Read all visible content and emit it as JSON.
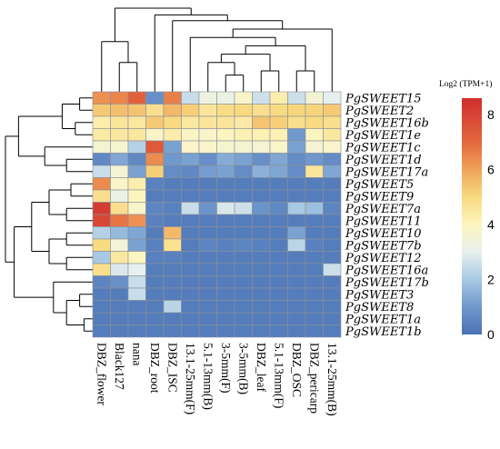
{
  "chart_data": {
    "type": "heatmap",
    "title": "",
    "legend_title": "Log2 (TPM+1)",
    "colorbar": {
      "min": 0,
      "max": 8.6,
      "ticks": [
        0,
        2,
        4,
        6,
        8
      ]
    },
    "colorscale": [
      {
        "v": 0.0,
        "c": "#4a71b5"
      },
      {
        "v": 1.0,
        "c": "#6f98cd"
      },
      {
        "v": 2.0,
        "c": "#a7c9e3"
      },
      {
        "v": 3.0,
        "c": "#e7f0ee"
      },
      {
        "v": 4.0,
        "c": "#fdf5c0"
      },
      {
        "v": 5.0,
        "c": "#f8da80"
      },
      {
        "v": 6.0,
        "c": "#f0a35a"
      },
      {
        "v": 7.0,
        "c": "#e4683e"
      },
      {
        "v": 8.6,
        "c": "#cf2d2e"
      }
    ],
    "columns": [
      "DBZ_flower",
      "Black127",
      "nana",
      "DBZ_root",
      "DBZ_ISC",
      "13.1-25mm(F)",
      "5.1-13mm(B)",
      "3-5mm(F)",
      "3-5mm(B)",
      "DBZ_leaf",
      "5.1-13mm(F)",
      "DBZ_OSC",
      "DBZ_pericarp",
      "13.1-25mm(B)"
    ],
    "rows": [
      "PgSWEET15",
      "PgSWEET2",
      "PgSWEET16b",
      "PgSWEET1e",
      "PgSWEET1c",
      "PgSWEET1d",
      "PgSWEET17a",
      "PgSWEET5",
      "PgSWEET9",
      "PgSWEET7a",
      "PgSWEET11",
      "PgSWEET10",
      "PgSWEET7b",
      "PgSWEET12",
      "PgSWEET16a",
      "PgSWEET17b",
      "PgSWEET3",
      "PgSWEET8",
      "PgSWEET1a",
      "PgSWEET1b"
    ],
    "values": [
      [
        6.3,
        6.5,
        7.2,
        0.8,
        6.6,
        2.5,
        3.3,
        3.2,
        3.8,
        2.6,
        4.3,
        2.6,
        3.6,
        3.0
      ],
      [
        5.3,
        5.5,
        5.4,
        4.8,
        5.6,
        5.2,
        4.6,
        4.9,
        5.0,
        4.8,
        5.0,
        5.1,
        5.1,
        5.3
      ],
      [
        4.3,
        4.6,
        4.5,
        5.3,
        5.0,
        4.5,
        4.6,
        4.6,
        4.4,
        5.4,
        5.2,
        4.8,
        5.0,
        4.8
      ],
      [
        4.4,
        4.5,
        4.5,
        3.8,
        4.3,
        3.9,
        3.8,
        4.0,
        4.2,
        4.2,
        4.2,
        1.0,
        4.0,
        4.5
      ],
      [
        3.6,
        3.7,
        2.2,
        7.4,
        1.2,
        3.8,
        3.8,
        3.7,
        3.6,
        3.6,
        3.8,
        1.2,
        3.6,
        3.8
      ],
      [
        0.6,
        1.3,
        0.6,
        6.4,
        1.0,
        1.2,
        0.8,
        1.4,
        1.2,
        0.8,
        1.3,
        0.7,
        1.0,
        0.7
      ],
      [
        2.5,
        3.6,
        1.2,
        5.2,
        0.7,
        0.6,
        1.1,
        1.2,
        0.7,
        1.5,
        1.3,
        0.7,
        4.6,
        1.3
      ],
      [
        6.4,
        3.8,
        4.3,
        0.4,
        0.3,
        0.3,
        0.3,
        0.3,
        0.3,
        0.3,
        0.3,
        0.3,
        0.3,
        0.3
      ],
      [
        4.8,
        3.2,
        4.0,
        0.3,
        0.3,
        0.3,
        0.3,
        0.3,
        0.3,
        0.3,
        0.3,
        0.3,
        0.3,
        0.3
      ],
      [
        8.2,
        4.8,
        3.8,
        0.5,
        0.4,
        2.5,
        0.9,
        2.8,
        2.6,
        0.9,
        0.6,
        2.0,
        1.8,
        0.5
      ],
      [
        7.9,
        6.8,
        6.3,
        0.4,
        0.3,
        0.3,
        0.3,
        0.3,
        0.3,
        0.3,
        0.3,
        0.3,
        0.3,
        0.3
      ],
      [
        2.2,
        1.7,
        1.3,
        0.3,
        5.6,
        0.3,
        0.3,
        0.3,
        0.3,
        0.3,
        0.3,
        1.2,
        0.3,
        0.3
      ],
      [
        5.0,
        3.5,
        1.2,
        0.4,
        4.7,
        0.3,
        0.5,
        0.4,
        0.5,
        0.4,
        0.3,
        2.3,
        0.4,
        0.3
      ],
      [
        2.0,
        4.5,
        4.0,
        0.4,
        0.4,
        0.3,
        0.3,
        0.3,
        0.3,
        0.3,
        0.3,
        0.3,
        0.3,
        0.3
      ],
      [
        4.8,
        2.8,
        3.0,
        0.3,
        0.3,
        0.3,
        0.3,
        0.3,
        0.3,
        0.3,
        0.3,
        0.3,
        0.3,
        2.6
      ],
      [
        0.5,
        0.8,
        2.5,
        0.3,
        0.3,
        0.3,
        0.3,
        0.3,
        0.3,
        0.3,
        0.3,
        0.3,
        0.3,
        0.3
      ],
      [
        0.3,
        0.3,
        2.5,
        0.3,
        0.3,
        0.3,
        0.3,
        0.3,
        0.3,
        0.3,
        0.3,
        0.3,
        0.3,
        0.3
      ],
      [
        0.3,
        0.3,
        0.3,
        0.3,
        2.3,
        0.3,
        0.3,
        0.3,
        0.3,
        0.3,
        0.3,
        0.3,
        0.3,
        0.3
      ],
      [
        0.3,
        0.3,
        0.3,
        0.3,
        0.3,
        0.3,
        0.3,
        0.3,
        0.3,
        0.3,
        0.3,
        0.3,
        0.3,
        0.3
      ],
      [
        0.3,
        0.3,
        0.3,
        0.3,
        0.3,
        0.3,
        0.3,
        0.3,
        0.3,
        0.3,
        0.3,
        0.3,
        0.3,
        0.3
      ]
    ],
    "row_dendrogram": {
      "leaf_order": [
        0,
        1,
        2,
        3,
        4,
        5,
        6,
        7,
        8,
        9,
        10,
        11,
        12,
        13,
        14,
        15,
        16,
        17,
        18,
        19
      ],
      "merges": [
        [
          0,
          1,
          0.15
        ],
        [
          2,
          3,
          0.2
        ],
        [
          20,
          21,
          0.35
        ],
        [
          5,
          6,
          0.3
        ],
        [
          4,
          23,
          0.55
        ],
        [
          22,
          24,
          0.85
        ],
        [
          7,
          8,
          0.25
        ],
        [
          9,
          10,
          0.3
        ],
        [
          26,
          27,
          0.5
        ],
        [
          11,
          12,
          0.3
        ],
        [
          13,
          14,
          0.3
        ],
        [
          29,
          30,
          0.5
        ],
        [
          28,
          31,
          0.7
        ],
        [
          16,
          17,
          0.15
        ],
        [
          18,
          19,
          0.1
        ],
        [
          33,
          34,
          0.3
        ],
        [
          15,
          35,
          0.45
        ],
        [
          32,
          36,
          0.9
        ],
        [
          25,
          37,
          1.0
        ]
      ]
    },
    "column_dendrogram": {
      "leaf_order": [
        0,
        1,
        2,
        3,
        4,
        5,
        6,
        7,
        8,
        9,
        10,
        11,
        12,
        13
      ],
      "merges": [
        [
          1,
          2,
          0.35
        ],
        [
          0,
          14,
          0.6
        ],
        [
          7,
          8,
          0.2
        ],
        [
          6,
          16,
          0.35
        ],
        [
          9,
          10,
          0.25
        ],
        [
          17,
          18,
          0.45
        ],
        [
          11,
          12,
          0.25
        ],
        [
          19,
          20,
          0.55
        ],
        [
          5,
          21,
          0.65
        ],
        [
          13,
          22,
          0.75
        ],
        [
          4,
          23,
          0.85
        ],
        [
          3,
          24,
          0.92
        ],
        [
          15,
          25,
          1.0
        ]
      ]
    }
  }
}
